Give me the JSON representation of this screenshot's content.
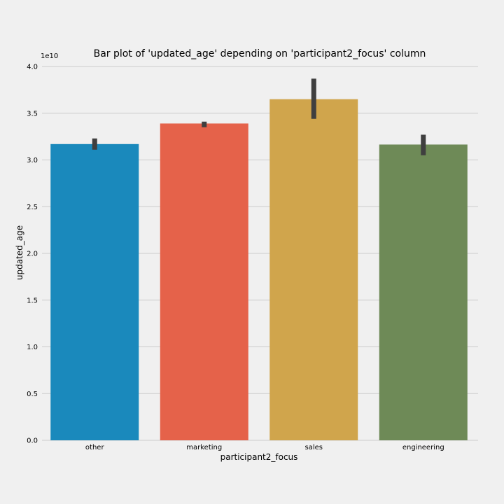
{
  "chart_data": {
    "type": "bar",
    "title": "Bar plot of 'updated_age' depending on 'participant2_focus' column",
    "xlabel": "participant2_focus",
    "ylabel": "updated_age",
    "y_offset_label": "1e10",
    "ylim": [
      0,
      4.0
    ],
    "yticks": [
      "0.0",
      "0.5",
      "1.0",
      "1.5",
      "2.0",
      "2.5",
      "3.0",
      "3.5",
      "4.0"
    ],
    "grid": "horizontal",
    "categories": [
      "other",
      "marketing",
      "sales",
      "engineering"
    ],
    "values": [
      3.17,
      3.39,
      3.65,
      3.165
    ],
    "error_bars": [
      [
        3.11,
        3.23
      ],
      [
        3.35,
        3.41
      ],
      [
        3.44,
        3.87
      ],
      [
        3.05,
        3.27
      ]
    ],
    "colors": [
      "#1a89bc",
      "#e5624a",
      "#d0a54c",
      "#6e8a57"
    ],
    "error_color": "#3f3f3f",
    "background": "#f0f0f0"
  }
}
